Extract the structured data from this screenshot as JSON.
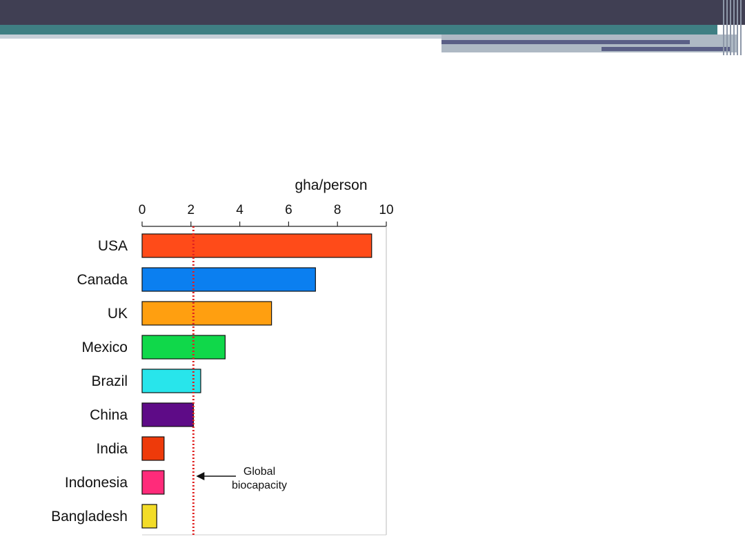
{
  "chart_data": {
    "type": "bar",
    "orientation": "horizontal",
    "categories": [
      "USA",
      "Canada",
      "UK",
      "Mexico",
      "Brazil",
      "China",
      "India",
      "Indonesia",
      "Bangladesh"
    ],
    "values": [
      9.4,
      7.1,
      5.3,
      3.4,
      2.4,
      2.1,
      0.9,
      0.9,
      0.6
    ],
    "colors": [
      "#ff4b19",
      "#0b7ff0",
      "#ff9f10",
      "#10d84a",
      "#28e5eb",
      "#5e0b87",
      "#ee3a0a",
      "#ff2b7a",
      "#f3dc28"
    ],
    "xlabel": "gha/person",
    "xlim": [
      0,
      10
    ],
    "xticks": [
      0,
      2,
      4,
      6,
      8,
      10
    ],
    "axis_position": "top",
    "grid": false,
    "reference_line": {
      "value": 2.1,
      "style": "dotted",
      "color": "#e02020"
    },
    "annotation": {
      "lines": [
        "Global",
        "biocapacity"
      ],
      "arrow_to": "reference_line"
    }
  }
}
